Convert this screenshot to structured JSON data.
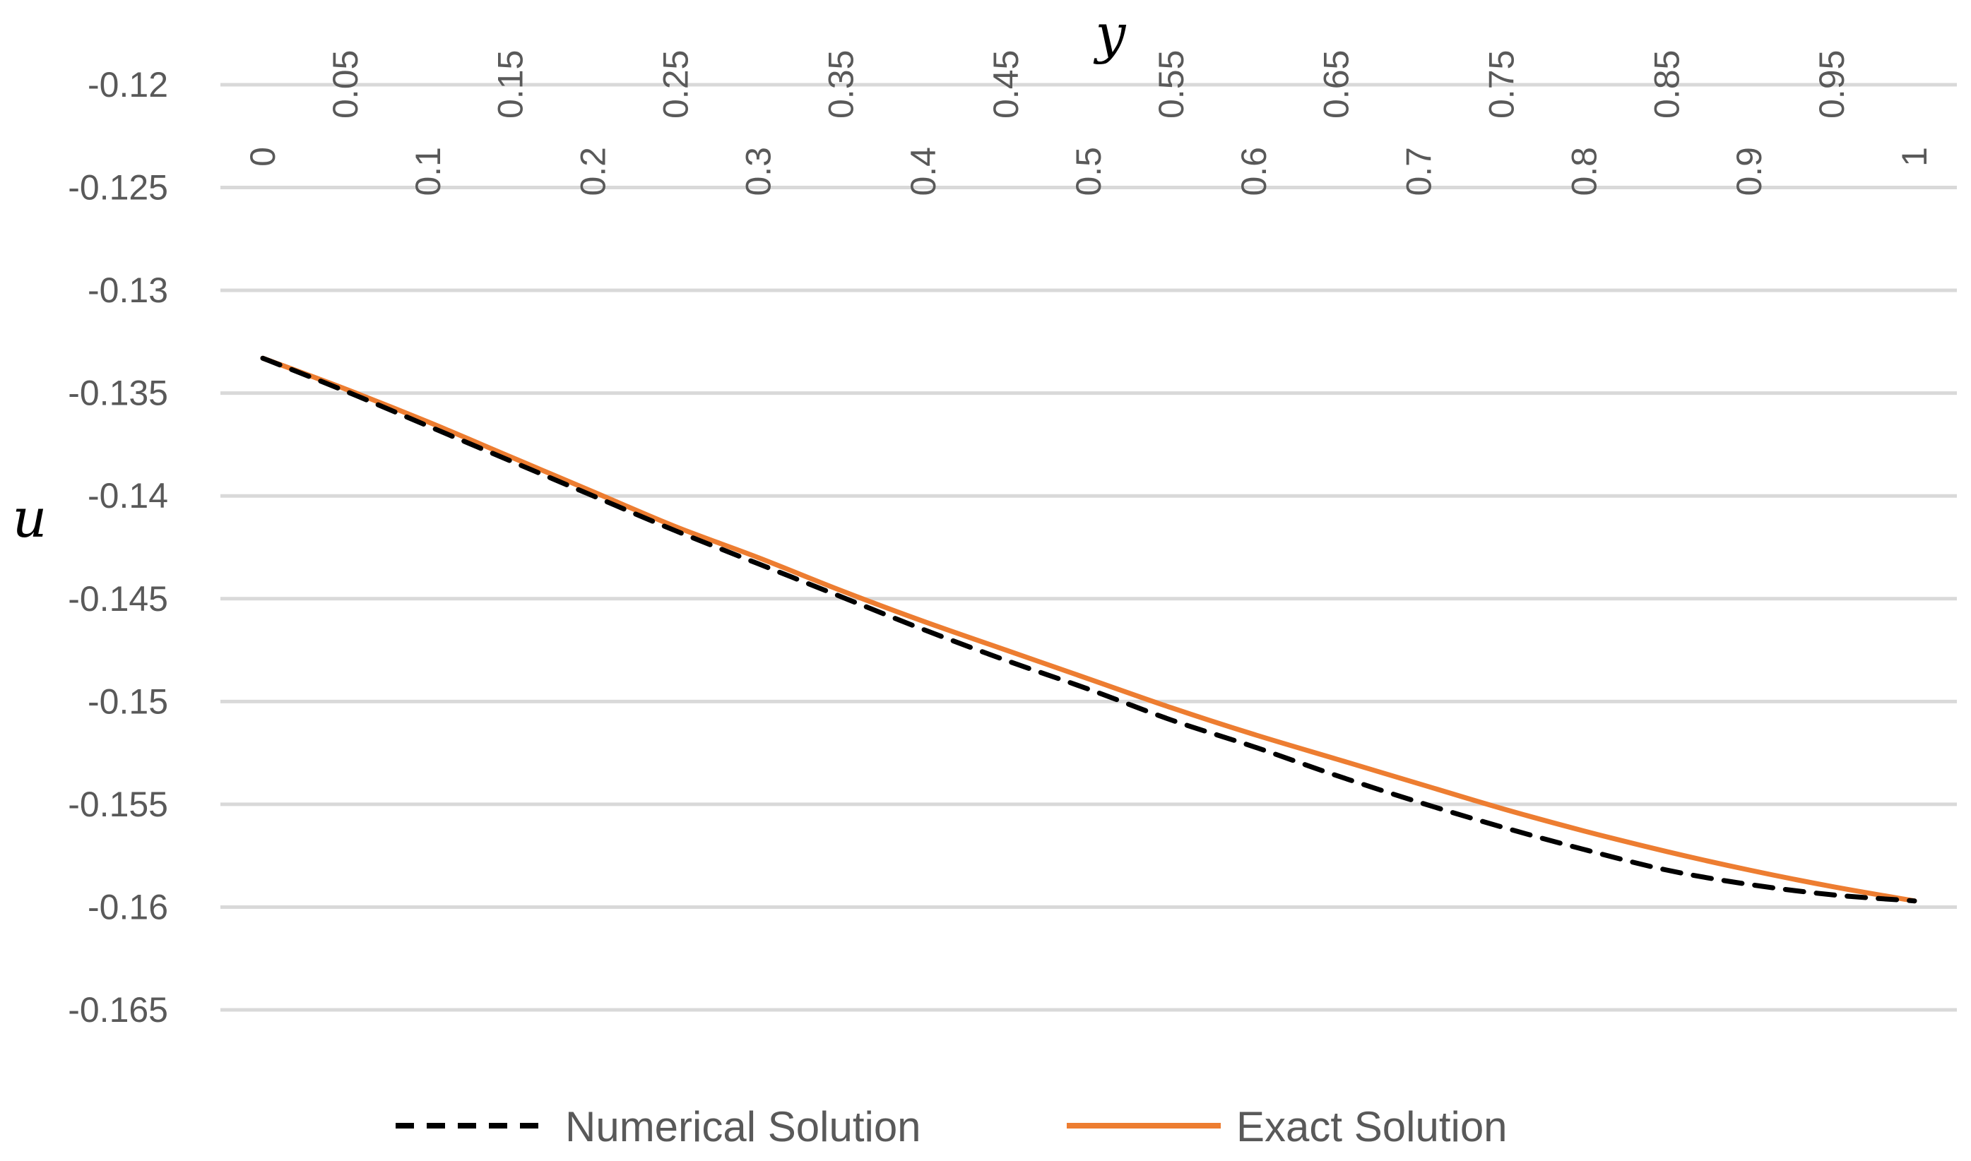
{
  "chart_data": {
    "type": "line",
    "xlabel": "y",
    "ylabel": "u",
    "x_ticks": [
      "0",
      "0.05",
      "0.1",
      "0.15",
      "0.2",
      "0.25",
      "0.3",
      "0.35",
      "0.4",
      "0.45",
      "0.5",
      "0.55",
      "0.6",
      "0.65",
      "0.7",
      "0.75",
      "0.8",
      "0.85",
      "0.9",
      "0.95",
      "1"
    ],
    "y_ticks": [
      "-0.12",
      "-0.125",
      "-0.13",
      "-0.135",
      "-0.14",
      "-0.145",
      "-0.15",
      "-0.155",
      "-0.16",
      "-0.165"
    ],
    "xlim": [
      0,
      1
    ],
    "ylim": [
      -0.165,
      -0.12
    ],
    "x_axis_position": "top",
    "y_gridlines": true,
    "legend_position": "bottom",
    "x": [
      0,
      0.05,
      0.1,
      0.15,
      0.2,
      0.25,
      0.3,
      0.35,
      0.4,
      0.45,
      0.5,
      0.55,
      0.6,
      0.65,
      0.7,
      0.75,
      0.8,
      0.85,
      0.9,
      0.95,
      1
    ],
    "series": [
      {
        "name": "Numerical Solution",
        "color": "#000000",
        "style": "dashed",
        "values": [
          -0.1333,
          -0.1349,
          -0.1366,
          -0.1383,
          -0.14,
          -0.1417,
          -0.1433,
          -0.1449,
          -0.1465,
          -0.148,
          -0.1494,
          -0.1509,
          -0.1522,
          -0.1536,
          -0.1549,
          -0.1561,
          -0.1572,
          -0.1582,
          -0.1589,
          -0.1594,
          -0.1597
        ]
      },
      {
        "name": "Exact Solution",
        "color": "#ED7D31",
        "style": "solid",
        "values": [
          -0.1333,
          -0.1348,
          -0.1364,
          -0.1381,
          -0.1398,
          -0.1415,
          -0.143,
          -0.1446,
          -0.1461,
          -0.1475,
          -0.1489,
          -0.1503,
          -0.1516,
          -0.1528,
          -0.154,
          -0.1552,
          -0.1563,
          -0.1573,
          -0.1582,
          -0.159,
          -0.1597
        ]
      }
    ]
  }
}
